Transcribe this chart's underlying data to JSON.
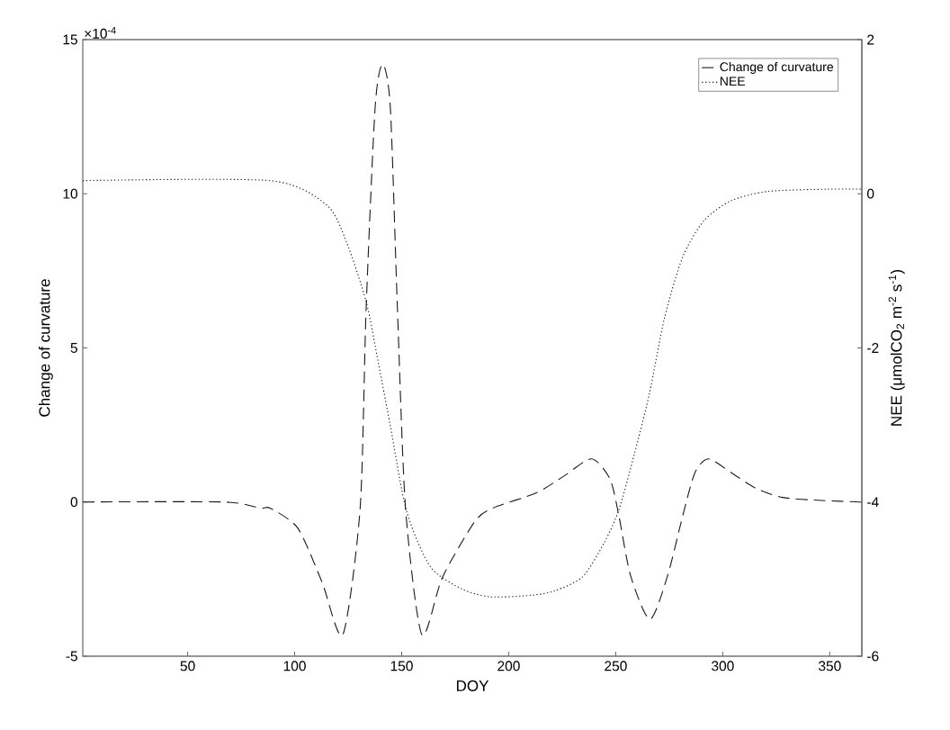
{
  "chart_data": {
    "type": "line",
    "xlabel": "DOY",
    "ylabel": "Change of curvature",
    "y2label": "NEE (μmolCO$_{2}$ m$^{-2}$ s$^{-1}$)",
    "annotations": [
      "×10$^{-4}$"
    ],
    "legend": "top right",
    "grid": false,
    "xlim": [
      1,
      365
    ],
    "xticks": [
      50,
      100,
      150,
      200,
      250,
      300,
      350
    ],
    "ylim": [
      -5,
      15
    ],
    "yticks": [
      -5,
      0,
      5,
      10,
      15
    ],
    "y2lim": [
      -6,
      2
    ],
    "y2ticks": [
      -6,
      -4,
      -2,
      0,
      2
    ],
    "series": [
      {
        "name": "Change of curvature",
        "color": "#1a1a1a",
        "line_style": "dashed",
        "x": [
          1,
          67,
          84,
          88.5,
          101.5,
          112.8,
          122.5,
          130.6,
          133.4,
          137.6,
          141.1,
          144.7,
          148,
          151.8,
          159.4,
          169,
          184,
          192.5,
          213,
          226,
          238.7,
          247.3,
          251.5,
          257,
          266,
          274.2,
          281.3,
          287,
          293.4,
          304,
          315.4,
          328,
          346.5,
          365
        ],
        "values": [
          0,
          0,
          -0.2,
          -0.2,
          -0.85,
          -2.6,
          -4.3,
          -0.2,
          6.3,
          12.8,
          14.2,
          12.8,
          6.3,
          -0.2,
          -4.3,
          -2.45,
          -0.65,
          -0.2,
          0.3,
          0.85,
          1.4,
          0.75,
          -0.45,
          -2.4,
          -3.8,
          -2.4,
          -0.45,
          0.95,
          1.4,
          0.95,
          0.45,
          0.15,
          0.05,
          0
        ]
      },
      {
        "name": "NEE",
        "color": "#1a1a1a",
        "line_style": "dotted",
        "axis": "y2",
        "x": [
          1,
          88.5,
          114.7,
          124,
          133.4,
          139,
          144.7,
          152.2,
          163.4,
          178.3,
          191.5,
          210.4,
          221.7,
          234.5,
          244.4,
          251.5,
          258.6,
          265.7,
          272.8,
          281.3,
          291.2,
          304,
          321,
          349.4,
          365
        ],
        "values": [
          0.17,
          0.17,
          -0.14,
          -0.61,
          -1.4,
          -2.18,
          -3.01,
          -4.11,
          -4.84,
          -5.13,
          -5.23,
          -5.21,
          -5.15,
          -4.97,
          -4.54,
          -4.1,
          -3.39,
          -2.6,
          -1.61,
          -0.82,
          -0.35,
          -0.09,
          0.03,
          0.06,
          0.06
        ]
      }
    ]
  }
}
